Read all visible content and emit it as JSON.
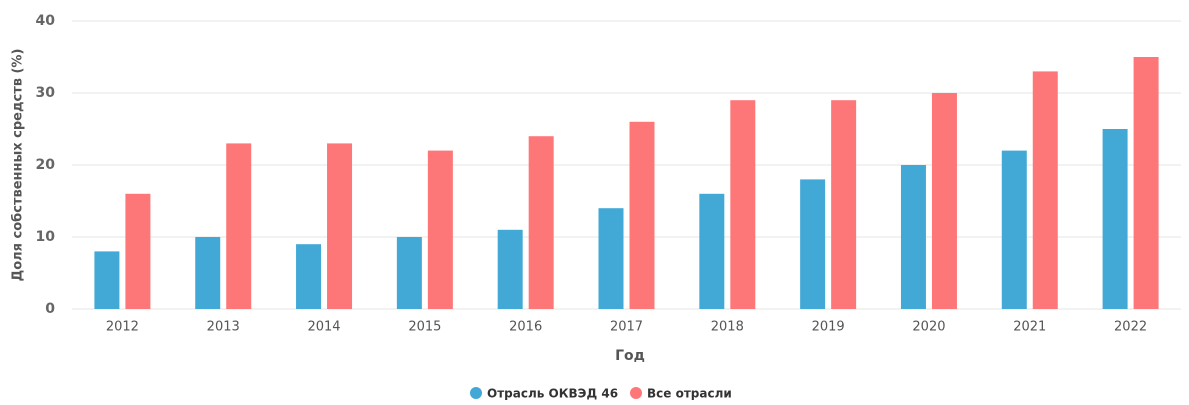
{
  "chart_data": {
    "type": "bar",
    "xlabel": "Год",
    "ylabel": "Доля собственных средств (%)",
    "categories": [
      "2012",
      "2013",
      "2014",
      "2015",
      "2016",
      "2017",
      "2018",
      "2019",
      "2020",
      "2021",
      "2022"
    ],
    "series": [
      {
        "name": "Отрасль ОКВЭД 46",
        "color": "#42a9d6",
        "values": [
          8,
          10,
          9,
          10,
          11,
          14,
          16,
          18,
          20,
          22,
          25
        ]
      },
      {
        "name": "Все отрасли",
        "color": "#fd7779",
        "values": [
          16,
          23,
          23,
          22,
          24,
          26,
          29,
          29,
          30,
          33,
          35
        ]
      }
    ],
    "ylim": [
      0,
      40
    ],
    "yticks": [
      0,
      10,
      20,
      30,
      40
    ],
    "grid": true,
    "legend": "bottom"
  }
}
